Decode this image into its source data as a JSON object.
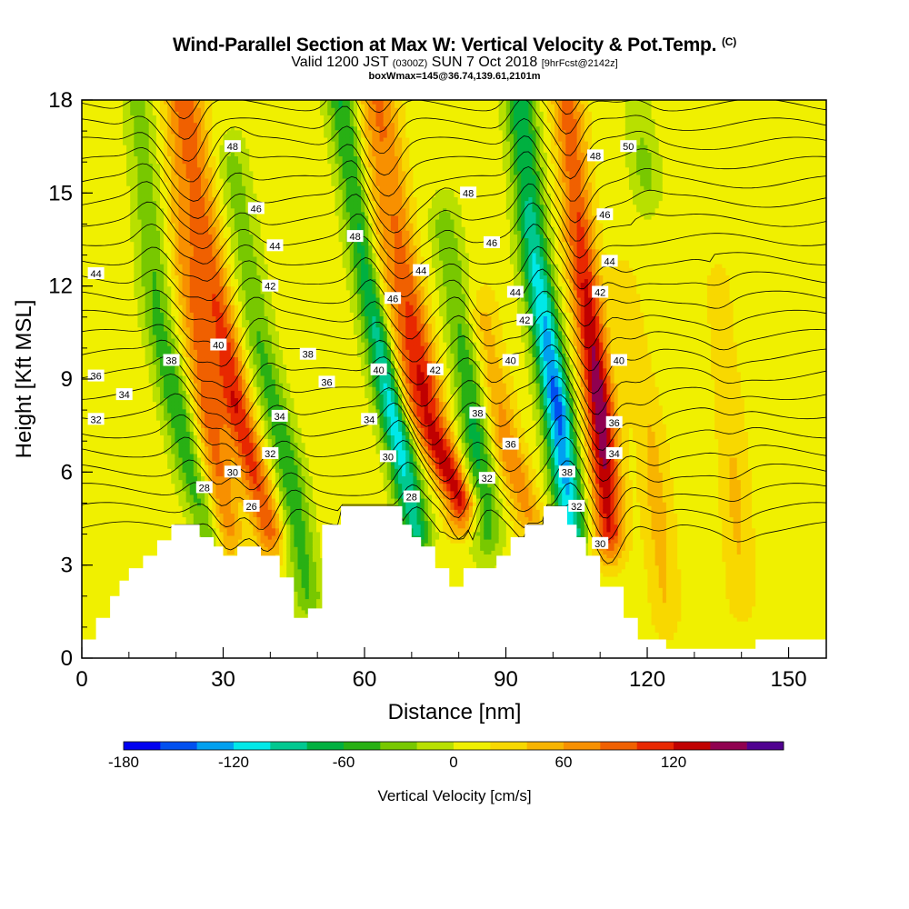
{
  "chart_data": {
    "type": "heatmap",
    "title": "Wind-Parallel Section at Max W: Vertical Velocity & Pot.Temp.",
    "title_mark": "(C)",
    "subtitle_main": "Valid 1200 JST",
    "subtitle_utc": "(0300Z)",
    "subtitle_date": "SUN 7 Oct 2018",
    "subtitle_fcst": "[9hrFcst@2142z]",
    "subtitle2": "boxWmax=145@36.74,139.61,2101m",
    "xlabel": "Distance [nm]",
    "ylabel": "Height [Kft MSL]",
    "xlim": [
      0,
      158
    ],
    "ylim": [
      0,
      18
    ],
    "xticks": [
      0,
      30,
      60,
      90,
      120,
      150
    ],
    "yticks": [
      0,
      3,
      6,
      9,
      12,
      15,
      18
    ],
    "colorbar_label": "Vertical Velocity [cm/s]",
    "colorbar_ticks": [
      -180,
      -120,
      -60,
      0,
      60,
      120
    ],
    "colorbar_levels": [
      -180,
      -160,
      -140,
      -120,
      -100,
      -80,
      -60,
      -40,
      -20,
      0,
      20,
      40,
      60,
      80,
      100,
      120,
      140,
      160
    ],
    "colorbar_colors": [
      "#0000f0",
      "#0050f0",
      "#00a0f0",
      "#00e8e8",
      "#00c890",
      "#00b040",
      "#28b014",
      "#78c800",
      "#b8e000",
      "#f0f000",
      "#f8d800",
      "#f8b400",
      "#f89000",
      "#f06000",
      "#e82800",
      "#c00000",
      "#900050",
      "#500090"
    ],
    "terrain": {
      "x": [
        0,
        3,
        3,
        6,
        6,
        8,
        8,
        10,
        10,
        13,
        13,
        16,
        16,
        19,
        19,
        25,
        25,
        28,
        28,
        30,
        30,
        33,
        33,
        38,
        38,
        42,
        42,
        45,
        45,
        48,
        48,
        51,
        51,
        55,
        55,
        68,
        68,
        70,
        70,
        72,
        72,
        75,
        75,
        78,
        78,
        81,
        81,
        85,
        85,
        88,
        88,
        91,
        91,
        94,
        94,
        98,
        98,
        103,
        103,
        105,
        105,
        107,
        107,
        110,
        110,
        115,
        115,
        118,
        118,
        124,
        124,
        143,
        143,
        148,
        148,
        158
      ],
      "y": [
        0.6,
        0.6,
        1.3,
        1.3,
        2.0,
        2.0,
        2.5,
        2.5,
        2.9,
        2.9,
        3.3,
        3.3,
        3.8,
        3.8,
        4.3,
        4.3,
        3.9,
        3.9,
        3.6,
        3.6,
        3.3,
        3.3,
        3.6,
        3.6,
        3.3,
        3.3,
        2.6,
        2.6,
        1.3,
        1.3,
        1.6,
        1.6,
        4.3,
        4.3,
        4.9,
        4.9,
        4.3,
        4.3,
        3.9,
        3.9,
        3.6,
        3.6,
        2.9,
        2.9,
        2.3,
        2.3,
        2.9,
        2.9,
        2.9,
        2.9,
        3.3,
        3.3,
        3.9,
        3.9,
        4.3,
        4.3,
        4.9,
        4.9,
        4.3,
        4.3,
        3.9,
        3.9,
        3.3,
        3.3,
        2.3,
        2.3,
        1.3,
        1.3,
        0.6,
        0.6,
        0.3,
        0.3,
        0.6,
        0.6,
        0.6,
        0.6
      ]
    },
    "series": [
      {
        "kind": "updraft",
        "amp": 85,
        "spine": [
          [
            20,
            18
          ],
          [
            22,
            13
          ],
          [
            27,
            8
          ],
          [
            31,
            4
          ]
        ]
      },
      {
        "kind": "updraft",
        "amp": 110,
        "spine": [
          [
            23,
            18
          ],
          [
            27,
            13
          ],
          [
            33,
            8
          ],
          [
            40,
            4
          ]
        ]
      },
      {
        "kind": "updraft",
        "amp": 70,
        "spine": [
          [
            61,
            18
          ],
          [
            63,
            13
          ],
          [
            70,
            8
          ],
          [
            80,
            5
          ]
        ]
      },
      {
        "kind": "updraft",
        "amp": 100,
        "spine": [
          [
            64,
            18
          ],
          [
            68,
            13
          ],
          [
            74,
            8
          ],
          [
            81,
            5
          ]
        ]
      },
      {
        "kind": "updraft",
        "amp": 70,
        "spine": [
          [
            85,
            11
          ],
          [
            90,
            7
          ],
          [
            95,
            4.5
          ]
        ]
      },
      {
        "kind": "updraft",
        "amp": 150,
        "spine": [
          [
            103,
            18
          ],
          [
            106,
            13
          ],
          [
            110,
            8
          ],
          [
            112,
            4
          ]
        ]
      },
      {
        "kind": "updraft",
        "amp": 40,
        "spine": [
          [
            115,
            12
          ],
          [
            121,
            7
          ],
          [
            124,
            1.5
          ]
        ]
      },
      {
        "kind": "updraft",
        "amp": 35,
        "spine": [
          [
            135,
            12
          ],
          [
            138,
            7
          ],
          [
            140,
            2
          ]
        ]
      },
      {
        "kind": "downdraft",
        "amp": 70,
        "spine": [
          [
            12,
            18
          ],
          [
            16,
            11
          ],
          [
            23,
            6
          ],
          [
            27,
            4
          ]
        ]
      },
      {
        "kind": "downdraft",
        "amp": 70,
        "spine": [
          [
            32,
            16
          ],
          [
            38,
            10
          ],
          [
            44,
            6
          ],
          [
            48,
            2
          ]
        ]
      },
      {
        "kind": "downdraft",
        "amp": 130,
        "spine": [
          [
            55,
            18
          ],
          [
            60,
            13
          ],
          [
            66,
            8
          ],
          [
            71,
            4
          ]
        ]
      },
      {
        "kind": "downdraft",
        "amp": 80,
        "spine": [
          [
            77,
            14
          ],
          [
            82,
            9
          ],
          [
            86,
            4
          ]
        ]
      },
      {
        "kind": "downdraft",
        "amp": 160,
        "spine": [
          [
            93,
            18
          ],
          [
            96,
            13
          ],
          [
            101,
            8
          ],
          [
            104,
            4
          ]
        ]
      },
      {
        "kind": "downdraft",
        "amp": 40,
        "spine": [
          [
            118,
            18
          ],
          [
            120,
            15
          ]
        ]
      }
    ],
    "isentrope_labels": [
      {
        "text": "48",
        "x": 32,
        "y": 16.5
      },
      {
        "text": "46",
        "x": 37,
        "y": 14.5
      },
      {
        "text": "44",
        "x": 41,
        "y": 13.3
      },
      {
        "text": "42",
        "x": 40,
        "y": 12.0
      },
      {
        "text": "40",
        "x": 29,
        "y": 10.1
      },
      {
        "text": "38",
        "x": 19,
        "y": 9.6
      },
      {
        "text": "36",
        "x": 3,
        "y": 9.1
      },
      {
        "text": "34",
        "x": 9,
        "y": 8.5
      },
      {
        "text": "32",
        "x": 3,
        "y": 7.7
      },
      {
        "text": "44",
        "x": 3,
        "y": 12.4
      },
      {
        "text": "38",
        "x": 48,
        "y": 9.8
      },
      {
        "text": "36",
        "x": 52,
        "y": 8.9
      },
      {
        "text": "34",
        "x": 42,
        "y": 7.8
      },
      {
        "text": "32",
        "x": 40,
        "y": 6.6
      },
      {
        "text": "30",
        "x": 32,
        "y": 6.0
      },
      {
        "text": "28",
        "x": 26,
        "y": 5.5
      },
      {
        "text": "26",
        "x": 36,
        "y": 4.9
      },
      {
        "text": "48",
        "x": 58,
        "y": 13.6
      },
      {
        "text": "46",
        "x": 66,
        "y": 11.6
      },
      {
        "text": "44",
        "x": 72,
        "y": 12.5
      },
      {
        "text": "40",
        "x": 63,
        "y": 9.3
      },
      {
        "text": "42",
        "x": 75,
        "y": 9.3
      },
      {
        "text": "34",
        "x": 61,
        "y": 7.7
      },
      {
        "text": "30",
        "x": 65,
        "y": 6.5
      },
      {
        "text": "28",
        "x": 70,
        "y": 5.2
      },
      {
        "text": "48",
        "x": 82,
        "y": 15.0
      },
      {
        "text": "46",
        "x": 87,
        "y": 13.4
      },
      {
        "text": "44",
        "x": 92,
        "y": 11.8
      },
      {
        "text": "42",
        "x": 94,
        "y": 10.9
      },
      {
        "text": "40",
        "x": 91,
        "y": 9.6
      },
      {
        "text": "38",
        "x": 84,
        "y": 7.9
      },
      {
        "text": "36",
        "x": 91,
        "y": 6.9
      },
      {
        "text": "32",
        "x": 86,
        "y": 5.8
      },
      {
        "text": "48",
        "x": 109,
        "y": 16.2
      },
      {
        "text": "50",
        "x": 116,
        "y": 16.5
      },
      {
        "text": "46",
        "x": 111,
        "y": 14.3
      },
      {
        "text": "44",
        "x": 112,
        "y": 12.8
      },
      {
        "text": "42",
        "x": 110,
        "y": 11.8
      },
      {
        "text": "40",
        "x": 114,
        "y": 9.6
      },
      {
        "text": "36",
        "x": 113,
        "y": 7.6
      },
      {
        "text": "34",
        "x": 113,
        "y": 6.6
      },
      {
        "text": "38",
        "x": 103,
        "y": 6.0
      },
      {
        "text": "32",
        "x": 105,
        "y": 4.9
      },
      {
        "text": "30",
        "x": 110,
        "y": 3.7
      }
    ],
    "isentropes": {
      "levels": [
        26,
        27,
        28,
        29,
        30,
        31,
        32,
        33,
        34,
        35,
        36,
        37,
        38,
        39,
        40,
        41,
        42,
        43,
        44,
        45,
        46,
        47,
        48,
        49,
        50
      ]
    },
    "grid": false,
    "legend": "bottom"
  }
}
